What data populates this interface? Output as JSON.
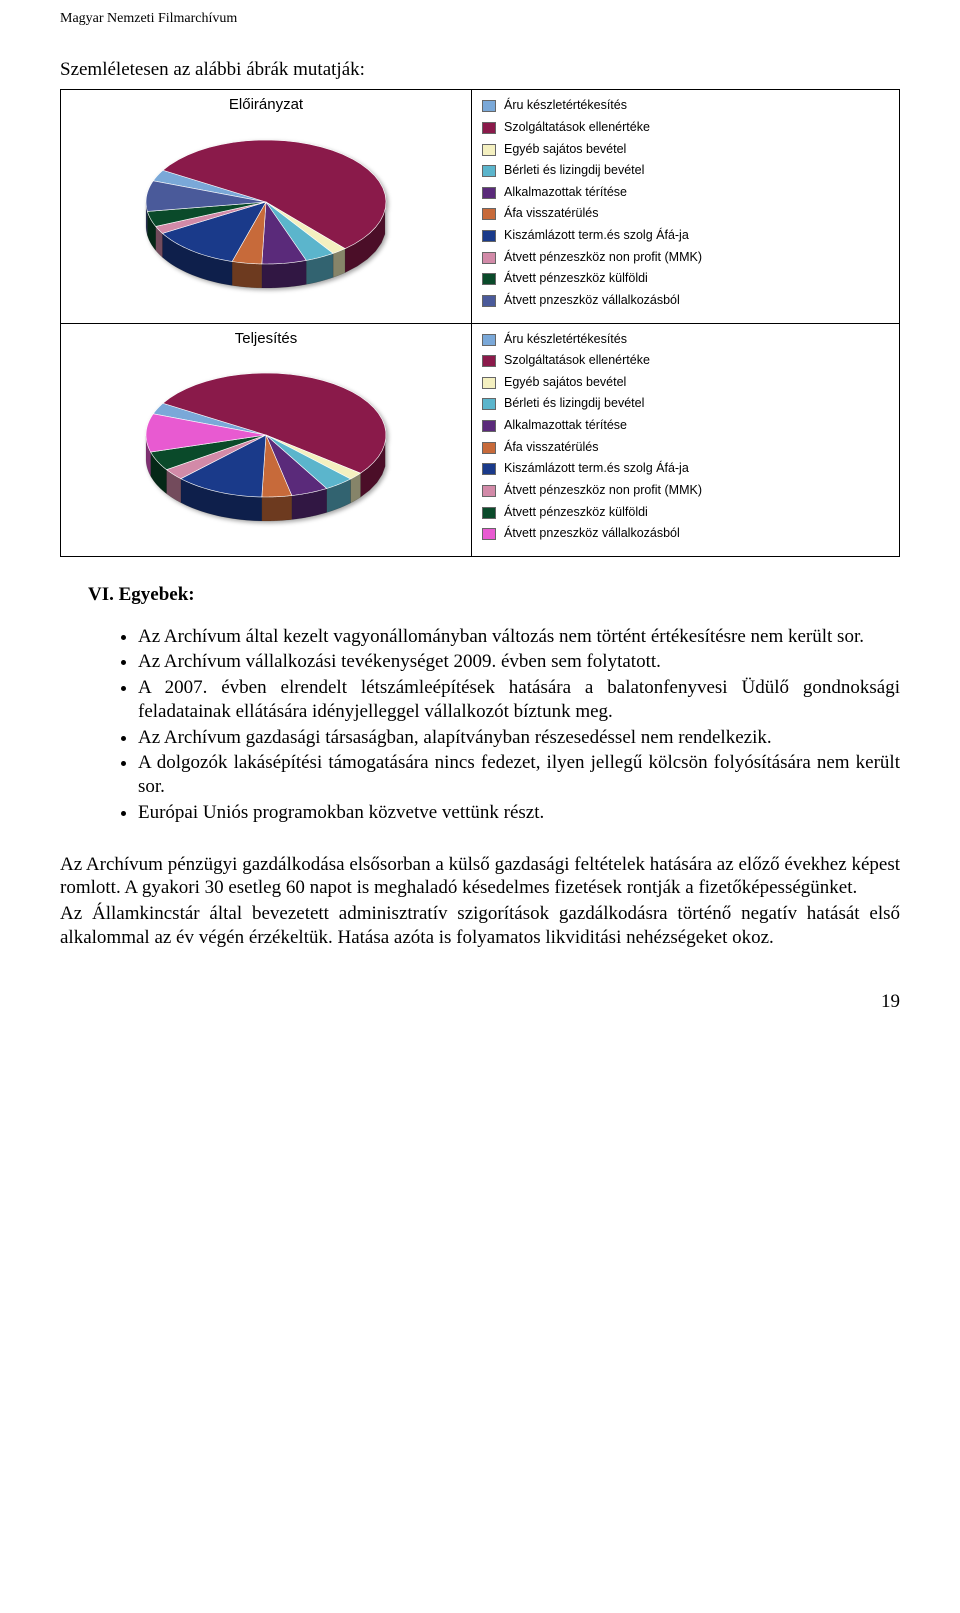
{
  "header": "Magyar Nemzeti Filmarchívum",
  "intro": "Szemléletesen az alábbi ábrák mutatják:",
  "chart1": {
    "title": "Előirányzat",
    "type": "pie",
    "background_color": "#ffffff",
    "slices": [
      {
        "label": "Áru készletértékesítés",
        "value": 3,
        "color": "#7aa8d8"
      },
      {
        "label": "Szolgáltatások ellenértéke",
        "value": 55,
        "color": "#8a1a4a"
      },
      {
        "label": "Egyéb sajátos bevétel",
        "value": 2,
        "color": "#f4f0c0"
      },
      {
        "label": "Bérleti és lizingdij bevétel",
        "value": 4,
        "color": "#5bb5cc"
      },
      {
        "label": "Alkalmazottak térítése",
        "value": 6,
        "color": "#5a2a7a"
      },
      {
        "label": "Áfa visszatérülés",
        "value": 4,
        "color": "#c76a3a"
      },
      {
        "label": "Kiszámlázott term.és szolg Áfá-ja",
        "value": 12,
        "color": "#1a3a8a"
      },
      {
        "label": "Átvett pénzeszköz non profit (MMK)",
        "value": 2,
        "color": "#d28aa8"
      },
      {
        "label": "Átvett pénzeszköz külföldi",
        "value": 4,
        "color": "#0a4a2a"
      },
      {
        "label": "Átvett pnzeszköz vállalkozásból",
        "value": 8,
        "color": "#4a5a9a"
      }
    ],
    "shadow_color": "#3a3a5a"
  },
  "chart2": {
    "title": "Teljesítés",
    "type": "pie",
    "background_color": "#ffffff",
    "slices": [
      {
        "label": "Áru készletértékesítés",
        "value": 3,
        "color": "#7aa8d8"
      },
      {
        "label": "Szolgáltatások ellenértéke",
        "value": 52,
        "color": "#8a1a4a"
      },
      {
        "label": "Egyéb sajátos bevétel",
        "value": 2,
        "color": "#f4f0c0"
      },
      {
        "label": "Bérleti és lizingdij bevétel",
        "value": 4,
        "color": "#5bb5cc"
      },
      {
        "label": "Alkalmazottak térítése",
        "value": 5,
        "color": "#5a2a7a"
      },
      {
        "label": "Áfa visszatérülés",
        "value": 4,
        "color": "#c76a3a"
      },
      {
        "label": "Kiszámlázott term.és szolg Áfá-ja",
        "value": 12,
        "color": "#1a3a8a"
      },
      {
        "label": "Átvett pénzeszköz non profit (MMK)",
        "value": 3,
        "color": "#d28aa8"
      },
      {
        "label": "Átvett pénzeszköz külföldi",
        "value": 5,
        "color": "#0a4a2a"
      },
      {
        "label": "Átvett pnzeszköz vállalkozásból",
        "value": 10,
        "color": "#e85ad1"
      }
    ],
    "shadow_color": "#3a3a5a"
  },
  "section_title": "VI. Egyebek:",
  "bullets": [
    "Az Archívum által kezelt vagyonállományban változás nem történt értékesítésre nem került sor.",
    "Az Archívum vállalkozási tevékenységet 2009. évben sem folytatott.",
    "A 2007. évben elrendelt létszámleépítések hatására a balatonfenyvesi Üdülő gondnoksági feladatainak ellátására idényjelleggel vállalkozót bíztunk meg.",
    "Az Archívum gazdasági társaságban, alapítványban részesedéssel nem rendelkezik.",
    "A dolgozók lakásépítési támogatására nincs fedezet, ilyen jellegű kölcsön folyósítására nem került sor.",
    "Európai Uniós programokban közvetve vettünk részt."
  ],
  "paragraphs": [
    "Az Archívum pénzügyi gazdálkodása elsősorban a külső gazdasági feltételek hatására az előző évekhez képest romlott. A gyakori 30 esetleg 60 napot is meghaladó késedelmes fizetések rontják a fizetőképességünket.",
    "Az Államkincstár által bevezetett adminisztratív szigorítások gazdálkodásra történő negatív hatását első alkalommal az év végén érzékeltük. Hatása azóta is folyamatos likviditási nehézségeket okoz."
  ],
  "page_number": "19"
}
